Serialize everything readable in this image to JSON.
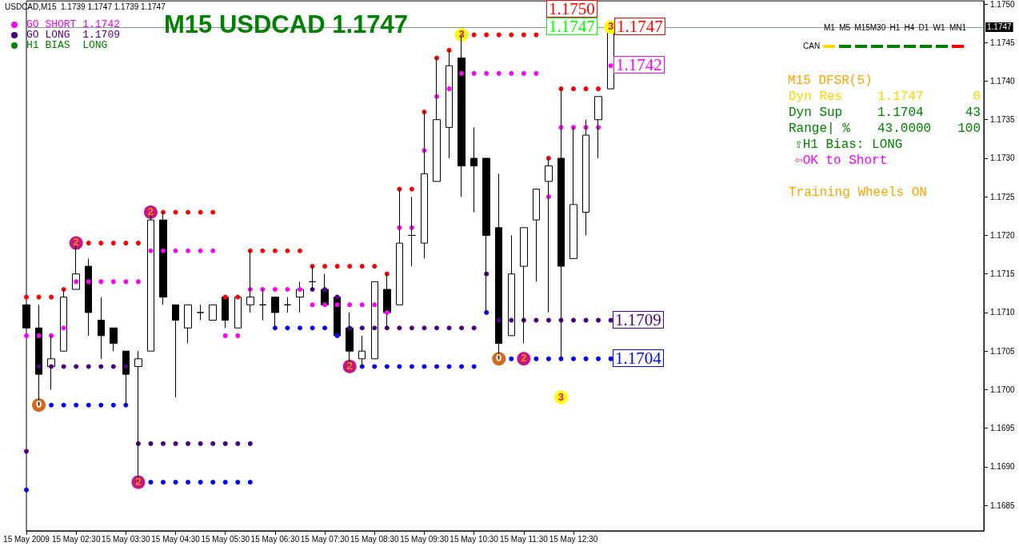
{
  "chart_data": {
    "type": "candlestick",
    "title": "M15 USDCAD 1.1747",
    "subtitle": "USDCAD,M15  1.1739 1.1747 1.1739 1.1747",
    "categories": [
      "15 May 2009",
      null,
      null,
      null,
      "15 May 02:30",
      null,
      null,
      null,
      "15 May 03:30",
      null,
      null,
      null,
      "15 May 04:30",
      null,
      null,
      null,
      "15 May 05:30",
      null,
      null,
      null,
      "15 May 06:30",
      null,
      null,
      null,
      "15 May 07:30",
      null,
      null,
      null,
      "15 May 08:30",
      null,
      null,
      null,
      "15 May 09:30",
      null,
      null,
      null,
      "15 May 10:30",
      null,
      null,
      null,
      "15 May 11:30",
      null,
      null,
      null,
      "15 May 12:30",
      null,
      null,
      null,
      null,
      null,
      null,
      null,
      null,
      null,
      null,
      null,
      null,
      null,
      null,
      null,
      null,
      null,
      null,
      null,
      null,
      null,
      null,
      null,
      null,
      null,
      null,
      null,
      null,
      null,
      null,
      null,
      null,
      null
    ],
    "ohlc": [
      [
        1.1711,
        1.1711,
        1.1708,
        1.1708
      ],
      [
        1.1708,
        1.1711,
        1.1698,
        1.1702
      ],
      [
        1.1703,
        1.1707,
        1.17,
        1.1704
      ],
      [
        1.1705,
        1.1713,
        1.1705,
        1.1712
      ],
      [
        1.1713,
        1.1719,
        1.1713,
        1.1715
      ],
      [
        1.1716,
        1.1717,
        1.1707,
        1.171
      ],
      [
        1.1709,
        1.1712,
        1.1704,
        1.1707
      ],
      [
        1.1708,
        1.1708,
        1.1705,
        1.1706
      ],
      [
        1.1705,
        1.1705,
        1.1698,
        1.1702
      ],
      [
        1.1703,
        1.1705,
        1.1688,
        1.1704
      ],
      [
        1.1705,
        1.1723,
        1.1705,
        1.1722
      ],
      [
        1.1722,
        1.1723,
        1.1711,
        1.1712
      ],
      [
        1.1711,
        1.1711,
        1.1699,
        1.1709
      ],
      [
        1.1708,
        1.1711,
        1.1706,
        1.1711
      ],
      [
        1.171,
        1.1711,
        1.1709,
        1.171
      ],
      [
        1.1709,
        1.1711,
        1.1709,
        1.1711
      ],
      [
        1.1712,
        1.1712,
        1.1708,
        1.1709
      ],
      [
        1.1708,
        1.1712,
        1.1708,
        1.1712
      ],
      [
        1.1711,
        1.1718,
        1.171,
        1.1712
      ],
      [
        1.1711,
        1.1713,
        1.1709,
        1.1711
      ],
      [
        1.1712,
        1.1712,
        1.1708,
        1.171
      ],
      [
        1.1711,
        1.1712,
        1.171,
        1.1711
      ],
      [
        1.1712,
        1.1714,
        1.171,
        1.1713
      ],
      [
        1.1714,
        1.1716,
        1.1713,
        1.1714
      ],
      [
        1.1713,
        1.1715,
        1.1711,
        1.1711
      ],
      [
        1.1712,
        1.1712,
        1.1707,
        1.1707
      ],
      [
        1.1708,
        1.171,
        1.1703,
        1.1705
      ],
      [
        1.1704,
        1.1707,
        1.1703,
        1.1705
      ],
      [
        1.1704,
        1.1714,
        1.1704,
        1.1714
      ],
      [
        1.1713,
        1.1715,
        1.1708,
        1.171
      ],
      [
        1.1711,
        1.1726,
        1.1711,
        1.1719
      ],
      [
        1.172,
        1.1725,
        1.1716,
        1.172
      ],
      [
        1.1719,
        1.1736,
        1.1717,
        1.1728
      ],
      [
        1.1727,
        1.1743,
        1.1727,
        1.1735
      ],
      [
        1.1734,
        1.1744,
        1.173,
        1.1742
      ],
      [
        1.1743,
        1.1746,
        1.1725,
        1.1729
      ],
      [
        1.173,
        1.1734,
        1.1723,
        1.1729
      ],
      [
        1.173,
        1.173,
        1.171,
        1.172
      ],
      [
        1.1721,
        1.1728,
        1.1704,
        1.1706
      ],
      [
        1.1707,
        1.172,
        1.1707,
        1.1715
      ],
      [
        1.1716,
        1.1721,
        1.1706,
        1.1721
      ],
      [
        1.1722,
        1.1726,
        1.1714,
        1.1726
      ],
      [
        1.1727,
        1.173,
        1.171,
        1.1729
      ],
      [
        1.173,
        1.1739,
        1.1704,
        1.1716
      ],
      [
        1.1717,
        1.1734,
        1.1717,
        1.1724
      ],
      [
        1.1723,
        1.1735,
        1.172,
        1.1733
      ],
      [
        1.1735,
        1.1738,
        1.173,
        1.1738
      ],
      [
        1.1739,
        1.1747,
        1.1739,
        1.1747
      ],
      null,
      null,
      null,
      null,
      null,
      null,
      null,
      null,
      null,
      null,
      null,
      null,
      null,
      null,
      null,
      null,
      null,
      null,
      null,
      null,
      null,
      null,
      null,
      null,
      null,
      null,
      null,
      null,
      null,
      null
    ],
    "marker": "circle",
    "series": [
      {
        "type": "scatter",
        "color": "#ff0000",
        "values": [
          1.1712,
          1.1712,
          1.1712,
          1.1713,
          null,
          1.1719,
          1.1719,
          1.1719,
          1.1719,
          1.1719,
          null,
          1.1723,
          1.1723,
          1.1723,
          1.1723,
          1.1723,
          1.1712,
          1.1712,
          1.1718,
          1.1718,
          1.1718,
          1.1718,
          1.1718,
          1.1716,
          1.1716,
          1.1716,
          1.1716,
          1.1716,
          1.1716,
          1.1715,
          1.1726,
          1.1726,
          1.1736,
          1.1743,
          1.1744,
          null,
          1.1746,
          1.1746,
          1.1746,
          1.1746,
          1.1746,
          1.1746,
          1.173,
          1.1739,
          1.1739,
          1.1739,
          1.1739,
          null,
          null,
          null,
          null,
          null,
          null,
          null,
          null,
          null,
          null,
          null,
          null,
          null,
          null,
          null,
          null,
          null,
          null,
          null,
          null,
          null,
          null,
          null,
          null,
          null,
          null,
          null,
          null,
          null,
          null,
          null
        ]
      },
      {
        "type": "scatter",
        "color": "#ff00ff",
        "values": [
          1.1707,
          1.1707,
          1.1707,
          1.1708,
          1.1714,
          1.1714,
          1.1714,
          1.1714,
          1.1714,
          1.1714,
          1.1718,
          1.1718,
          1.1718,
          1.1718,
          1.1718,
          1.1718,
          1.1707,
          1.1707,
          1.1713,
          1.1713,
          1.1713,
          1.1713,
          1.1713,
          1.1711,
          1.1711,
          1.1711,
          1.1711,
          1.1711,
          1.1711,
          1.171,
          1.1721,
          1.1721,
          1.1731,
          1.1738,
          1.1739,
          1.1741,
          1.1741,
          1.1741,
          1.1741,
          1.1741,
          1.1741,
          1.1741,
          1.1725,
          1.1734,
          1.1734,
          1.1734,
          1.1734,
          1.1742,
          null,
          null,
          null,
          null,
          null,
          null,
          null,
          null,
          null,
          null,
          null,
          null,
          null,
          null,
          null,
          null,
          null,
          null,
          null,
          null,
          null,
          null,
          null,
          null,
          null,
          null,
          null,
          null,
          null,
          null
        ]
      },
      {
        "type": "scatter",
        "color": "#4b0082",
        "values": [
          1.1692,
          1.1703,
          1.1703,
          1.1703,
          1.1703,
          1.1703,
          1.1703,
          1.1703,
          1.1703,
          1.1693,
          1.1693,
          1.1693,
          1.1693,
          1.1693,
          1.1693,
          1.1693,
          1.1693,
          1.1693,
          1.1693,
          null,
          null,
          null,
          null,
          1.1713,
          1.1713,
          1.1712,
          1.1708,
          1.1708,
          1.1708,
          1.1708,
          1.1708,
          1.1708,
          1.1708,
          1.1708,
          1.1708,
          1.1708,
          1.1708,
          1.1715,
          1.1709,
          1.1709,
          1.1709,
          1.1709,
          1.1709,
          1.1709,
          1.1709,
          1.1709,
          1.1709,
          1.1709,
          null,
          null,
          null,
          null,
          null,
          null,
          null,
          null,
          null,
          null,
          null,
          null,
          null,
          null,
          null,
          null,
          null,
          null,
          null,
          null,
          null,
          null,
          null,
          null,
          null,
          null,
          null,
          null,
          null,
          null
        ]
      },
      {
        "type": "scatter",
        "color": "#0000ff",
        "values": [
          1.1687,
          null,
          1.1698,
          1.1698,
          1.1698,
          1.1698,
          1.1698,
          1.1698,
          1.1698,
          null,
          1.1688,
          1.1688,
          1.1688,
          1.1688,
          1.1688,
          1.1688,
          1.1688,
          1.1688,
          1.1688,
          null,
          1.1708,
          1.1708,
          1.1708,
          1.1708,
          1.1708,
          1.1707,
          null,
          1.1703,
          1.1703,
          1.1703,
          1.1703,
          1.1703,
          1.1703,
          1.1703,
          1.1703,
          1.1703,
          1.1703,
          1.171,
          null,
          1.1704,
          null,
          1.1704,
          1.1704,
          1.1704,
          1.1704,
          1.1704,
          1.1704,
          1.1704,
          null,
          null,
          null,
          null,
          null,
          null,
          null,
          null,
          null,
          null,
          null,
          null,
          null,
          null,
          null,
          null,
          null,
          null,
          null,
          null,
          null,
          null,
          null,
          null,
          null,
          null,
          null,
          null,
          null,
          null
        ]
      },
      {
        "type": "scatter",
        "color": "#d2691e",
        "values": [
          null,
          1.1698,
          null,
          null,
          null,
          null,
          null,
          null,
          null,
          null,
          null,
          null,
          null,
          null,
          null,
          null,
          null,
          null,
          null,
          null,
          null,
          null,
          null,
          null,
          null,
          null,
          null,
          null,
          null,
          null,
          null,
          null,
          null,
          null,
          null,
          null,
          null,
          null,
          1.1704,
          null,
          null,
          null,
          null,
          null,
          null,
          null,
          null,
          null,
          null,
          null,
          null,
          null,
          null,
          null,
          null,
          null,
          null,
          null,
          null,
          null,
          null,
          null,
          null,
          null,
          null,
          null,
          null,
          null,
          null,
          null,
          null,
          null,
          null,
          null,
          null,
          null,
          null,
          null
        ]
      },
      {
        "type": "scatter",
        "color": "#c71585",
        "values": [
          null,
          null,
          null,
          null,
          1.1719,
          null,
          null,
          null,
          null,
          1.1688,
          1.1723,
          null,
          null,
          null,
          null,
          null,
          null,
          null,
          null,
          null,
          null,
          null,
          null,
          null,
          null,
          null,
          1.1703,
          null,
          null,
          null,
          null,
          null,
          null,
          null,
          null,
          null,
          null,
          null,
          null,
          null,
          1.1704,
          null,
          null,
          null,
          null,
          null,
          null,
          null,
          null,
          null,
          null,
          null,
          null,
          null,
          null,
          null,
          null,
          null,
          null,
          null,
          null,
          null,
          null,
          null,
          null,
          null,
          null,
          null,
          null,
          null,
          null,
          null,
          null,
          null,
          null,
          null,
          null,
          null
        ]
      },
      {
        "type": "scatter",
        "color": "#ffff00",
        "values": [
          null,
          null,
          null,
          null,
          null,
          null,
          null,
          null,
          null,
          null,
          null,
          null,
          null,
          null,
          null,
          null,
          null,
          null,
          null,
          null,
          null,
          null,
          null,
          null,
          null,
          null,
          null,
          null,
          null,
          null,
          null,
          null,
          null,
          null,
          null,
          1.1746,
          null,
          null,
          null,
          null,
          null,
          null,
          null,
          1.1699,
          null,
          null,
          null,
          1.1747,
          null,
          null,
          null,
          null,
          null,
          null,
          null,
          null,
          null,
          null,
          null,
          null,
          null,
          null,
          null,
          null,
          null,
          null,
          null,
          null,
          null,
          null,
          null,
          null,
          null,
          null,
          null,
          null,
          null,
          null
        ]
      }
    ],
    "ylim": [
      1.16817,
      1.17504
    ],
    "yticks": [
      {
        "value": 1.1685,
        "label": "1.1685"
      },
      {
        "value": 1.169,
        "label": "1.1690"
      },
      {
        "value": 1.1695,
        "label": "1.1695"
      },
      {
        "value": 1.17,
        "label": "1.1700"
      },
      {
        "value": 1.1705,
        "label": "1.1705"
      },
      {
        "value": 1.171,
        "label": "1.1710"
      },
      {
        "value": 1.1715,
        "label": "1.1715"
      },
      {
        "value": 1.172,
        "label": "1.1720"
      },
      {
        "value": 1.1725,
        "label": "1.1725"
      },
      {
        "value": 1.173,
        "label": "1.1730"
      },
      {
        "value": 1.1735,
        "label": "1.1735"
      },
      {
        "value": 1.174,
        "label": "1.1740"
      },
      {
        "value": 1.1745,
        "label": "1.1745"
      },
      {
        "value": 1.175,
        "label": "1.1750"
      }
    ],
    "ref_lines": [
      {
        "axis": "y",
        "value": 1.1747,
        "label": "1.1747",
        "color": "#8c96a0"
      }
    ],
    "grid": false,
    "annotations": [
      "0",
      "0",
      "2",
      "2",
      "2",
      "2",
      "2",
      "3",
      "3",
      "3",
      "GO SHORT 1.1742",
      "GO LONG  1.1709",
      "H1 BIAS  LONG",
      "M1 M5 M15M30 H1 H4 D1 W1 MN1",
      "CAN",
      "M15 DFSR(5)",
      "Dyn Res",
      "1.1747",
      "0",
      "Dyn Sup",
      "1.1704",
      "43",
      "Range| %",
      "43.0000",
      "100",
      "⇧H1 Bias: LONG",
      "⇦OK to Short",
      "Training Wheels ON",
      "1.1750",
      "1.1747",
      "1.1747",
      "1.1742",
      "1.1709",
      "1.1704"
    ]
  }
}
